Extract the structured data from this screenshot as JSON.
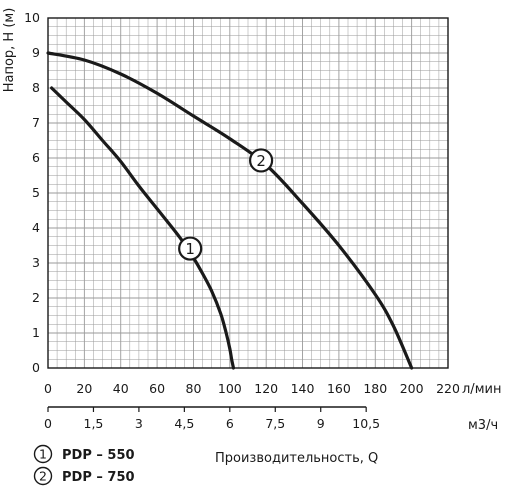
{
  "chart_data": {
    "type": "line",
    "ylabel": "Напор, Н (м)",
    "xlabel": "Производительность, Q",
    "x_unit": "л/мин",
    "x2_unit": "м3/ч",
    "xlim": [
      0,
      220
    ],
    "ylim": [
      0,
      10
    ],
    "x_ticks": [
      "0",
      "20",
      "40",
      "60",
      "80",
      "100",
      "120",
      "140",
      "160",
      "180",
      "200",
      "220"
    ],
    "x2_ticks": [
      "0",
      "1,5",
      "3",
      "4,5",
      "6",
      "7,5",
      "9",
      "10,5"
    ],
    "x2_tick_values": [
      0,
      1.5,
      3,
      4.5,
      6,
      7.5,
      9,
      10.5
    ],
    "y_ticks": [
      "0",
      "1",
      "2",
      "3",
      "4",
      "5",
      "6",
      "7",
      "8",
      "9",
      "10"
    ],
    "grid": true,
    "series": [
      {
        "marker": "1",
        "name": "PDP – 550",
        "x": [
          2,
          10,
          20,
          30,
          40,
          50,
          60,
          70,
          75,
          80,
          85,
          90,
          95,
          98,
          100,
          101,
          102
        ],
        "y": [
          8,
          7.6,
          7.1,
          6.5,
          5.9,
          5.2,
          4.55,
          3.9,
          3.55,
          3.15,
          2.7,
          2.2,
          1.55,
          1.0,
          0.55,
          0.25,
          0
        ]
      },
      {
        "marker": "2",
        "name": "PDP – 750",
        "x": [
          0,
          20,
          40,
          60,
          80,
          100,
          120,
          140,
          160,
          180,
          190,
          200
        ],
        "y": [
          9,
          8.8,
          8.4,
          7.85,
          7.2,
          6.55,
          5.8,
          4.7,
          3.5,
          2.1,
          1.2,
          0
        ]
      }
    ],
    "markers": [
      {
        "label": "1",
        "series": 0,
        "at_x": 76
      },
      {
        "label": "2",
        "series": 1,
        "at_x": 115
      }
    ],
    "legend": {
      "placement": "bottom-left",
      "items": [
        {
          "marker": "1",
          "label": "PDP – 550"
        },
        {
          "marker": "2",
          "label": "PDP – 750"
        }
      ]
    },
    "line_color": "#1a1a1a",
    "grid_color": "#9a9a9a"
  }
}
